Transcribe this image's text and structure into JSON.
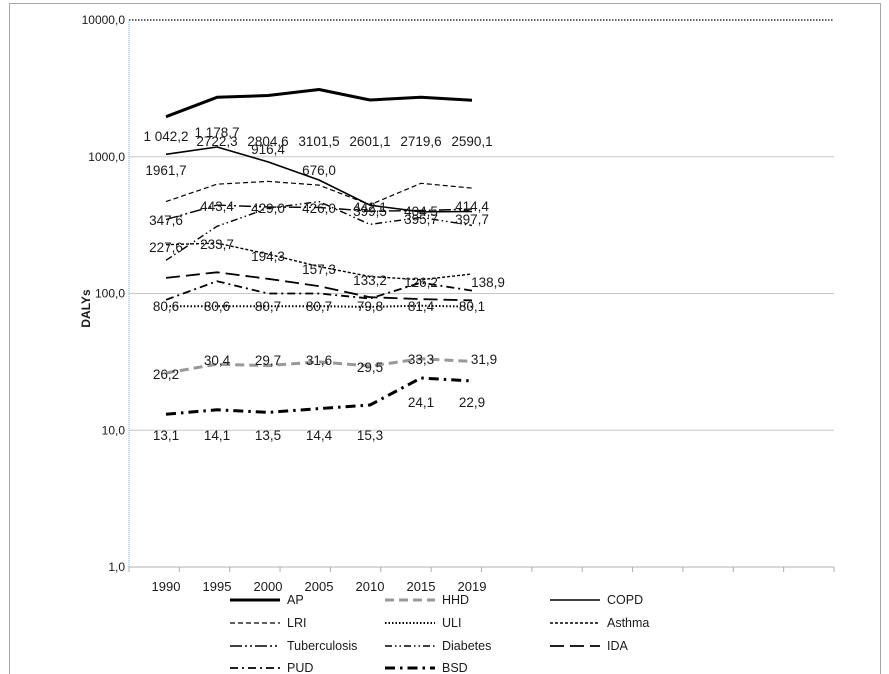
{
  "chart_data": {
    "type": "line",
    "scale": "log",
    "ylim": [
      1,
      10000
    ],
    "ylabel": "DALYs",
    "y_ticks": [
      "1,0",
      "10,0",
      "100,0",
      "1000,0",
      "10000,0"
    ],
    "x": [
      "1990",
      "1995",
      "2000",
      "2005",
      "2010",
      "2015",
      "2019"
    ],
    "grid": "horizontal",
    "legend_position": "bottom",
    "series": [
      {
        "name": "AP",
        "style": "solid-thick",
        "color": "#000000",
        "values": [
          1961.7,
          2722.3,
          2804.6,
          3101.5,
          2601.1,
          2719.6,
          2590.1
        ],
        "labels": [
          "1961,7",
          "2722,3",
          "2804,6",
          "3101,5",
          "2601,1",
          "2719,6",
          "2590,1"
        ]
      },
      {
        "name": "HHD",
        "style": "dash-gray",
        "color": "#999999",
        "values": [
          26.2,
          30.4,
          29.7,
          31.6,
          29.5,
          33.3,
          31.9
        ],
        "labels": [
          "26,2",
          "30,4",
          "29,7",
          "31,6",
          "29,5",
          "33,3",
          "31,9"
        ]
      },
      {
        "name": "COPD",
        "style": "solid",
        "color": "#000000",
        "values": [
          1042.2,
          1178.7,
          916.4,
          676.0,
          442.1,
          395.7,
          397.7
        ],
        "labels": [
          "1 042,2",
          "1 178,7",
          "916,4",
          "676,0",
          "442,1",
          "395,7",
          "397,7"
        ]
      },
      {
        "name": "LRI",
        "style": "dash-thin",
        "color": "#000000",
        "values": [
          470,
          630,
          660,
          620,
          445,
          640,
          590
        ],
        "labels": []
      },
      {
        "name": "ULI",
        "style": "dotted",
        "color": "#000000",
        "values": [
          80.6,
          80.6,
          80.7,
          80.7,
          79.8,
          81.4,
          80.1
        ],
        "labels": [
          "80,6",
          "80,6",
          "80,7",
          "80,7",
          "79,8",
          "81,4",
          "80,1"
        ]
      },
      {
        "name": "Asthma",
        "style": "short-dash",
        "color": "#000000",
        "values": [
          227.6,
          233.7,
          194.3,
          157.3,
          133.2,
          126.2,
          138.9
        ],
        "labels": [
          "227,6",
          "233,7",
          "194,3",
          "157,3",
          "133,2",
          "126,2",
          "138,9"
        ]
      },
      {
        "name": "Tuberculosis",
        "style": "long-dot-dot",
        "color": "#000000",
        "values": [
          347.6,
          443.4,
          429.0,
          426.0,
          399.5,
          404.5,
          414.4
        ],
        "labels": [
          "347,6",
          "443,4",
          "429,0",
          "426,0",
          "399,5",
          "404,5",
          "414,4"
        ]
      },
      {
        "name": "Diabetes",
        "style": "dash-dot-dot",
        "color": "#000000",
        "values": [
          175,
          310,
          420,
          470,
          320,
          360,
          315
        ],
        "labels": []
      },
      {
        "name": "IDA",
        "style": "long-dash",
        "color": "#000000",
        "values": [
          130,
          143,
          128,
          113,
          94,
          91,
          89
        ],
        "labels": []
      },
      {
        "name": "PUD",
        "style": "dash-dot",
        "color": "#000000",
        "values": [
          90,
          123,
          100,
          100,
          92,
          120,
          105
        ],
        "labels": []
      },
      {
        "name": "BSD",
        "style": "dash-dot-thick",
        "color": "#000000",
        "values": [
          13.1,
          14.1,
          13.5,
          14.4,
          15.3,
          24.1,
          22.9
        ],
        "labels": [
          "13,1",
          "14,1",
          "13,5",
          "14,4",
          "15,3",
          "24,1",
          "22,9"
        ]
      }
    ]
  }
}
